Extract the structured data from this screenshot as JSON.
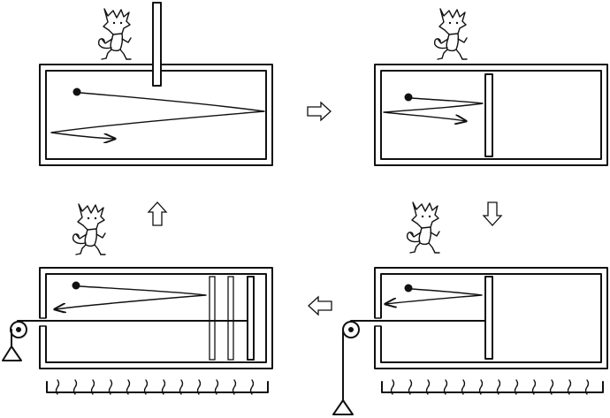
{
  "diagram": {
    "panels": [
      {
        "id": "top-left",
        "demon": true,
        "partition": "inserted-from-top",
        "molecule_path": "long-zigzag",
        "pulley_weight": false,
        "heat_bath": false
      },
      {
        "id": "top-right",
        "demon": true,
        "partition": "piston",
        "molecule_path": "short-zigzag-left-side",
        "pulley_weight": false,
        "heat_bath": false
      },
      {
        "id": "bottom-right",
        "demon": true,
        "partition": "piston",
        "molecule_path": "short-path-left-side",
        "pulley_weight": true,
        "heat_bath": true
      },
      {
        "id": "bottom-left",
        "demon": true,
        "partition": "piston-moved-right",
        "molecule_path": "path-across",
        "pulley_weight": true,
        "heat_bath": true
      }
    ],
    "cycle_arrows": [
      "right",
      "down",
      "left",
      "up"
    ],
    "colors": {
      "ink": "#111111",
      "paper": "#ffffff"
    }
  }
}
